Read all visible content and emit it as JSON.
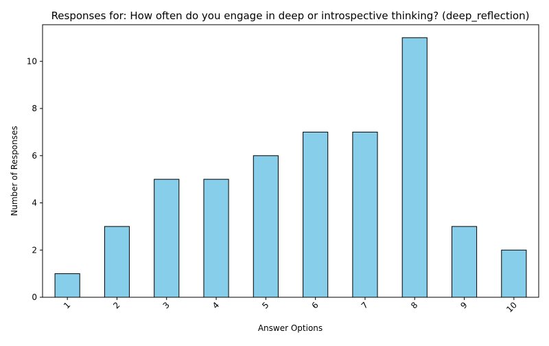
{
  "chart_data": {
    "type": "bar",
    "title": "Responses for: How often do you engage in deep or introspective thinking? (deep_reflection)",
    "xlabel": "Answer Options",
    "ylabel": "Number of Responses",
    "categories": [
      "1",
      "2",
      "3",
      "4",
      "5",
      "6",
      "7",
      "8",
      "9",
      "10"
    ],
    "values": [
      1,
      3,
      5,
      5,
      6,
      7,
      7,
      11,
      3,
      2
    ],
    "ylim": [
      0,
      11.55
    ],
    "yticks": [
      "0",
      "2",
      "4",
      "6",
      "8",
      "10"
    ],
    "grid": false,
    "legend": "none",
    "bar_color": "#87CEEB",
    "edge_color": "#000000"
  }
}
